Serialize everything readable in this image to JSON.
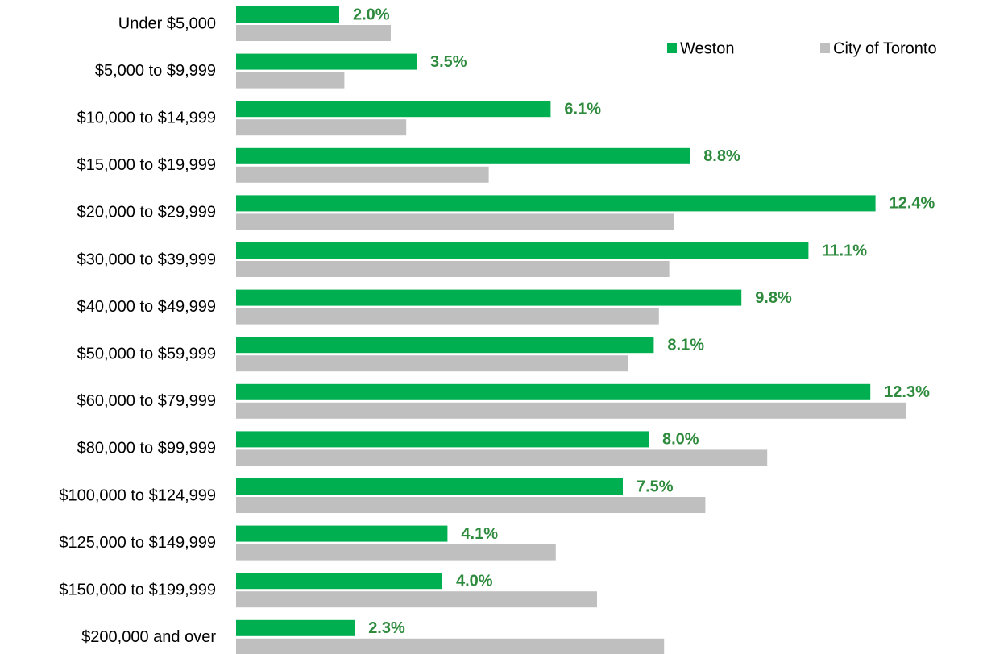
{
  "chart_data": {
    "type": "bar",
    "orientation": "horizontal",
    "categories": [
      "Under $5,000",
      "$5,000 to $9,999",
      "$10,000 to $14,999",
      "$15,000 to $19,999",
      "$20,000 to $29,999",
      "$30,000 to $39,999",
      "$40,000 to $49,999",
      "$50,000 to $59,999",
      "$60,000 to $79,999",
      "$80,000 to $99,999",
      "$100,000 to $124,999",
      "$125,000 to $149,999",
      "$150,000 to $199,999",
      "$200,000 and over"
    ],
    "series": [
      {
        "name": "Weston",
        "color": "#00b050",
        "values": [
          2.0,
          3.5,
          6.1,
          8.8,
          12.4,
          11.1,
          9.8,
          8.1,
          12.3,
          8.0,
          7.5,
          4.1,
          4.0,
          2.3
        ],
        "value_labels": [
          "2.0%",
          "3.5%",
          "6.1%",
          "8.8%",
          "12.4%",
          "11.1%",
          "9.8%",
          "8.1%",
          "12.3%",
          "8.0%",
          "7.5%",
          "4.1%",
          "4.0%",
          "2.3%"
        ]
      },
      {
        "name": "City of Toronto",
        "color": "#bfbfbf",
        "values": [
          3.0,
          2.1,
          3.3,
          4.9,
          8.5,
          8.4,
          8.2,
          7.6,
          13.0,
          10.3,
          9.1,
          6.2,
          7.0,
          8.3
        ]
      }
    ],
    "xlim": [
      0,
      14
    ],
    "legend": "top-right"
  }
}
